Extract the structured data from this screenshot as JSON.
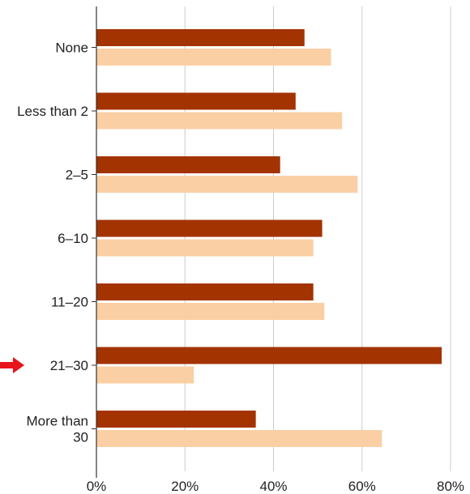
{
  "chart_data": {
    "type": "bar",
    "orientation": "horizontal",
    "title": "",
    "xlabel": "",
    "ylabel": "",
    "categories": [
      "None",
      "Less than 2",
      "2–5",
      "6–10",
      "11–20",
      "21–30",
      "More than 30"
    ],
    "category_label_lines": [
      [
        "None"
      ],
      [
        "Less than 2"
      ],
      [
        "2–5"
      ],
      [
        "6–10"
      ],
      [
        "11–20"
      ],
      [
        "21–30"
      ],
      [
        "More than",
        "30"
      ]
    ],
    "series": [
      {
        "color": "#a33300",
        "values": [
          47,
          45,
          41.5,
          51,
          49,
          78,
          36
        ]
      },
      {
        "color": "#fbcfa4",
        "values": [
          53,
          55.5,
          59,
          49,
          51.5,
          22,
          64.5
        ]
      }
    ],
    "xlim": [
      0,
      80
    ],
    "xticks": [
      0,
      20,
      40,
      60,
      80
    ],
    "xtick_labels": [
      "0%",
      "20%",
      "40%",
      "60%",
      "80%"
    ],
    "grid": true,
    "legend": "none",
    "highlight": {
      "category": "21–30",
      "marker": "arrow-right-icon",
      "color": "#e8141b"
    }
  }
}
